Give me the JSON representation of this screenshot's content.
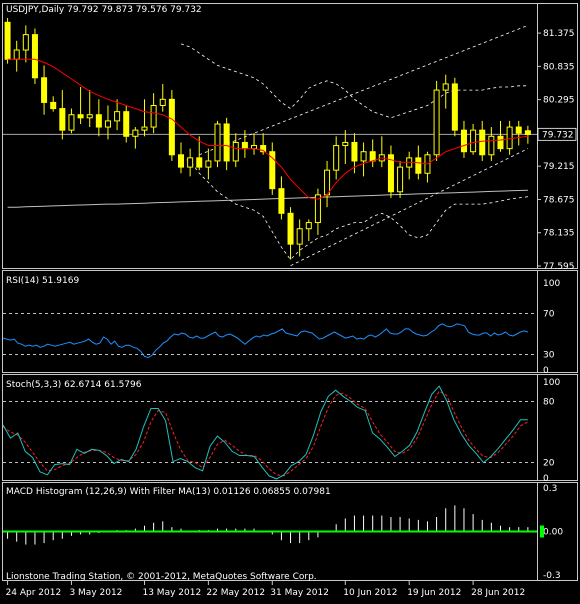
{
  "colors": {
    "background": "#000000",
    "text": "#ffffff",
    "panel_border": "#c8c8c8",
    "candle": "#ffff00",
    "ma_fast": "#ff0000",
    "ma_slow": "#bfbfbf",
    "bands": "#ffffff",
    "channel": "#ffffff",
    "rsi": "#1e90ff",
    "stoch_main": "#20c0c0",
    "stoch_signal": "#ff2020",
    "macd_hist": "#ffffff",
    "macd_signal": "#00ff00",
    "current_price": "#bfbfbf"
  },
  "chart_data": [
    {
      "type": "candlestick",
      "title": "USDJPY,Daily",
      "ohlc_header": "79.792 79.873 79.576 79.732",
      "current_price": 79.732,
      "current_price_label": "79.732",
      "y_ticks": [
        "81.375",
        "80.835",
        "80.295",
        "79.755",
        "79.215",
        "78.675",
        "78.135",
        "77.595"
      ],
      "y_tick_values": [
        81.375,
        80.835,
        80.295,
        79.755,
        79.215,
        78.675,
        78.135,
        77.595
      ],
      "ylim": [
        77.595,
        81.62
      ],
      "x_tick_labels": [
        "24 Apr 2012",
        "3 May 2012",
        "13 May 2012",
        "22 May 2012",
        "31 May 2012",
        "10 Jun 2012",
        "19 Jun 2012",
        "28 Jun 2012"
      ],
      "x_tick_index": [
        0,
        7,
        15,
        22,
        29,
        37,
        44,
        51
      ],
      "candles": [
        [
          81.55,
          81.62,
          80.88,
          80.95
        ],
        [
          80.95,
          81.25,
          80.75,
          81.1
        ],
        [
          81.1,
          81.5,
          80.9,
          81.35
        ],
        [
          81.35,
          81.45,
          80.55,
          80.65
        ],
        [
          80.65,
          80.85,
          80.05,
          80.25
        ],
        [
          80.25,
          80.35,
          80.1,
          80.15
        ],
        [
          80.15,
          80.45,
          79.65,
          79.8
        ],
        [
          79.8,
          80.15,
          79.75,
          80.05
        ],
        [
          80.05,
          80.5,
          79.9,
          80.0
        ],
        [
          80.0,
          80.45,
          79.85,
          80.05
        ],
        [
          80.05,
          80.3,
          79.7,
          79.85
        ],
        [
          79.85,
          80.2,
          79.65,
          79.95
        ],
        [
          79.95,
          80.3,
          79.8,
          80.1
        ],
        [
          80.1,
          80.2,
          79.6,
          79.7
        ],
        [
          79.7,
          79.85,
          79.5,
          79.8
        ],
        [
          79.8,
          80.3,
          79.7,
          79.85
        ],
        [
          79.85,
          80.4,
          79.75,
          80.2
        ],
        [
          80.2,
          80.55,
          80.1,
          80.3
        ],
        [
          80.3,
          80.45,
          79.3,
          79.4
        ],
        [
          79.4,
          79.6,
          79.1,
          79.2
        ],
        [
          79.2,
          79.5,
          79.05,
          79.35
        ],
        [
          79.35,
          79.7,
          79.15,
          79.2
        ],
        [
          79.2,
          79.5,
          79.0,
          79.3
        ],
        [
          79.3,
          79.95,
          79.2,
          79.9
        ],
        [
          79.9,
          80.0,
          79.15,
          79.3
        ],
        [
          79.3,
          79.75,
          79.2,
          79.6
        ],
        [
          79.6,
          79.8,
          79.35,
          79.5
        ],
        [
          79.5,
          79.75,
          79.4,
          79.55
        ],
        [
          79.55,
          79.75,
          79.4,
          79.45
        ],
        [
          79.45,
          79.6,
          78.75,
          78.85
        ],
        [
          78.85,
          79.05,
          78.35,
          78.45
        ],
        [
          78.45,
          78.55,
          77.7,
          77.95
        ],
        [
          77.95,
          78.35,
          77.75,
          78.2
        ],
        [
          78.2,
          78.35,
          78.0,
          78.3
        ],
        [
          78.3,
          78.85,
          78.1,
          78.75
        ],
        [
          78.75,
          79.3,
          78.55,
          79.15
        ],
        [
          79.15,
          79.7,
          79.0,
          79.55
        ],
        [
          79.55,
          79.8,
          79.25,
          79.6
        ],
        [
          79.6,
          79.75,
          79.1,
          79.3
        ],
        [
          79.3,
          79.6,
          79.05,
          79.45
        ],
        [
          79.45,
          79.65,
          79.2,
          79.3
        ],
        [
          79.3,
          79.7,
          79.2,
          79.4
        ],
        [
          79.4,
          79.55,
          78.7,
          78.8
        ],
        [
          78.8,
          79.3,
          78.7,
          79.2
        ],
        [
          79.2,
          79.45,
          79.0,
          79.35
        ],
        [
          79.35,
          79.55,
          79.0,
          79.1
        ],
        [
          79.1,
          79.45,
          78.95,
          79.4
        ],
        [
          79.4,
          80.6,
          79.3,
          80.45
        ],
        [
          80.45,
          80.7,
          80.15,
          80.55
        ],
        [
          80.55,
          80.65,
          79.7,
          79.8
        ],
        [
          79.8,
          79.95,
          79.35,
          79.45
        ],
        [
          79.45,
          79.9,
          79.4,
          79.8
        ],
        [
          79.8,
          79.95,
          79.3,
          79.4
        ],
        [
          79.4,
          79.85,
          79.3,
          79.7
        ],
        [
          79.7,
          79.95,
          79.45,
          79.5
        ],
        [
          79.5,
          79.95,
          79.4,
          79.85
        ],
        [
          79.85,
          79.95,
          79.55,
          79.75
        ],
        [
          79.79,
          79.87,
          79.58,
          79.73
        ]
      ],
      "ma_fast": [
        80.95,
        80.95,
        80.95,
        80.95,
        80.9,
        80.83,
        80.73,
        80.63,
        80.53,
        80.43,
        80.36,
        80.3,
        80.25,
        80.2,
        80.15,
        80.1,
        80.08,
        80.05,
        79.98,
        79.85,
        79.72,
        79.62,
        79.55,
        79.55,
        79.55,
        79.5,
        79.5,
        79.5,
        79.47,
        79.35,
        79.2,
        79.0,
        78.85,
        78.7,
        78.68,
        78.75,
        78.95,
        79.1,
        79.2,
        79.26,
        79.3,
        79.35,
        79.32,
        79.28,
        79.28,
        79.27,
        79.25,
        79.35,
        79.45,
        79.5,
        79.55,
        79.6,
        79.62,
        79.63,
        79.64,
        79.66,
        79.68,
        79.7
      ],
      "ma_slow": [
        78.55,
        78.55,
        78.555,
        78.56,
        78.565,
        78.57,
        78.575,
        78.58,
        78.585,
        78.59,
        78.595,
        78.6,
        78.6,
        78.605,
        78.61,
        78.615,
        78.62,
        78.625,
        78.63,
        78.635,
        78.64,
        78.645,
        78.65,
        78.655,
        78.66,
        78.665,
        78.67,
        78.675,
        78.68,
        78.685,
        78.69,
        78.695,
        78.7,
        78.705,
        78.71,
        78.715,
        78.72,
        78.725,
        78.73,
        78.735,
        78.74,
        78.745,
        78.75,
        78.755,
        78.76,
        78.765,
        78.77,
        78.775,
        78.78,
        78.785,
        78.79,
        78.795,
        78.8,
        78.805,
        78.81,
        78.815,
        78.82,
        78.825
      ],
      "band_upper": [
        null,
        null,
        null,
        null,
        null,
        null,
        null,
        null,
        null,
        null,
        null,
        null,
        null,
        null,
        null,
        null,
        null,
        null,
        null,
        81.2,
        81.15,
        81.05,
        80.95,
        80.85,
        80.8,
        80.75,
        80.7,
        80.65,
        80.55,
        80.4,
        80.25,
        80.15,
        80.3,
        80.48,
        80.55,
        80.6,
        80.55,
        80.45,
        80.3,
        80.2,
        80.1,
        80.05,
        80.0,
        80.05,
        80.1,
        80.15,
        80.2,
        80.3,
        80.4,
        80.45,
        80.45,
        80.45,
        80.45,
        80.48,
        80.5,
        80.5,
        80.52,
        80.52
      ],
      "band_lower": [
        null,
        null,
        null,
        null,
        null,
        null,
        null,
        null,
        null,
        null,
        null,
        null,
        null,
        null,
        null,
        null,
        null,
        null,
        null,
        79.35,
        79.3,
        79.1,
        78.95,
        78.8,
        78.7,
        78.6,
        78.55,
        78.5,
        78.4,
        78.15,
        77.9,
        77.7,
        77.85,
        77.95,
        78.05,
        78.1,
        78.2,
        78.25,
        78.3,
        78.3,
        78.4,
        78.45,
        78.38,
        78.25,
        78.1,
        78.05,
        78.1,
        78.3,
        78.5,
        78.6,
        78.6,
        78.6,
        78.6,
        78.62,
        78.65,
        78.68,
        78.7,
        78.72
      ],
      "channel_upper": [
        [
          21,
          79.4
        ],
        [
          57,
          81.5
        ]
      ],
      "channel_lower": [
        [
          31,
          77.6
        ],
        [
          57,
          79.5
        ]
      ]
    },
    {
      "type": "line",
      "title": "RSI(14) 51.9169",
      "y_ticks": [
        "100",
        "70",
        "30",
        "0"
      ],
      "y_tick_values": [
        100,
        70,
        30,
        0
      ],
      "levels": [
        70,
        30
      ],
      "ylim": [
        0,
        100
      ],
      "series": [
        {
          "values": [
            46,
            45,
            44,
            45,
            41,
            40,
            38,
            39,
            38,
            39,
            37,
            38,
            40,
            39,
            38,
            39,
            40,
            41,
            42,
            40,
            41,
            42,
            43,
            45,
            42,
            40,
            41,
            47,
            45,
            40,
            43,
            38,
            37,
            39,
            39,
            37,
            36,
            33,
            28,
            27,
            29,
            34,
            37,
            41,
            43,
            47,
            50,
            49,
            51,
            50,
            47,
            46,
            48,
            46,
            46,
            48,
            50,
            52,
            48,
            47,
            49,
            50,
            48,
            46,
            43,
            40,
            43,
            46,
            48,
            47,
            49,
            48,
            50,
            51,
            53,
            55,
            51,
            50,
            49,
            48,
            52,
            53,
            52,
            51,
            48,
            45,
            46,
            48,
            50,
            52,
            50,
            48,
            46,
            47,
            48,
            45,
            46,
            45,
            48,
            49,
            47,
            49,
            52,
            55,
            51,
            50,
            50,
            52,
            55,
            55,
            52,
            50,
            49,
            48,
            49,
            52,
            54,
            58,
            60,
            58,
            57,
            58,
            60,
            59,
            58,
            52,
            50,
            49,
            49,
            51,
            51,
            48,
            51,
            49,
            50,
            52,
            49,
            48,
            50,
            52,
            53,
            52
          ]
        }
      ]
    },
    {
      "type": "line",
      "title": "Stoch(5,3,3) 62.6714 61.5796",
      "y_ticks": [
        "100",
        "80",
        "20",
        "0"
      ],
      "y_tick_values": [
        100,
        80,
        20,
        0
      ],
      "levels": [
        80,
        20
      ],
      "ylim": [
        0,
        100
      ],
      "series": [
        {
          "values": [
            57,
            44,
            49,
            31,
            25,
            11,
            8,
            18,
            19,
            18,
            33,
            29,
            33,
            32,
            27,
            19,
            23,
            21,
            33,
            55,
            73,
            73,
            61,
            21,
            24,
            21,
            15,
            12,
            36,
            46,
            40,
            31,
            27,
            27,
            26,
            16,
            7,
            4,
            8,
            17,
            21,
            28,
            47,
            70,
            85,
            91,
            85,
            80,
            74,
            71,
            49,
            43,
            35,
            26,
            31,
            37,
            50,
            69,
            87,
            95,
            81,
            62,
            48,
            37,
            29,
            20,
            26,
            34,
            43,
            52,
            62,
            62
          ]
        },
        {
          "values": [
            55,
            50,
            47,
            40,
            30,
            20,
            12,
            13,
            17,
            19,
            25,
            30,
            32,
            32,
            30,
            25,
            22,
            22,
            28,
            40,
            60,
            71,
            69,
            50,
            33,
            22,
            20,
            15,
            25,
            38,
            42,
            37,
            31,
            27,
            27,
            22,
            14,
            8,
            7,
            12,
            18,
            24,
            36,
            56,
            74,
            86,
            88,
            83,
            77,
            73,
            60,
            48,
            40,
            31,
            29,
            33,
            44,
            60,
            77,
            90,
            86,
            70,
            55,
            42,
            33,
            26,
            25,
            30,
            38,
            46,
            56,
            60
          ]
        }
      ]
    },
    {
      "type": "bar",
      "title": "MACD Histogram (12,26,9) With Filter MA(13) 0.01126 0.06855 0.07981",
      "y_ticks": [
        "0.3",
        "0.00",
        "-0.3"
      ],
      "y_tick_values": [
        0.3,
        0.0,
        -0.3
      ],
      "ylim": [
        -0.3,
        0.3
      ],
      "values": [
        -0.05,
        -0.07,
        -0.09,
        -0.09,
        -0.08,
        -0.06,
        -0.05,
        -0.03,
        -0.02,
        -0.02,
        -0.01,
        0.0,
        0.01,
        0.01,
        0.02,
        0.04,
        0.06,
        0.07,
        0.03,
        0.02,
        0.0,
        0.01,
        0.01,
        0.02,
        0.02,
        0.02,
        0.02,
        0.02,
        0.0,
        -0.02,
        -0.06,
        -0.08,
        -0.08,
        -0.06,
        -0.04,
        0.0,
        0.05,
        0.09,
        0.11,
        0.11,
        0.11,
        0.11,
        0.1,
        0.1,
        0.09,
        0.08,
        0.07,
        0.1,
        0.16,
        0.18,
        0.16,
        0.12,
        0.08,
        0.06,
        0.04,
        0.03,
        0.03,
        0.03
      ],
      "signal": [
        0.0,
        0.0
      ]
    }
  ],
  "footer": "Lionstone Trading Station, © 2001-2012, MetaQuotes Software Corp."
}
